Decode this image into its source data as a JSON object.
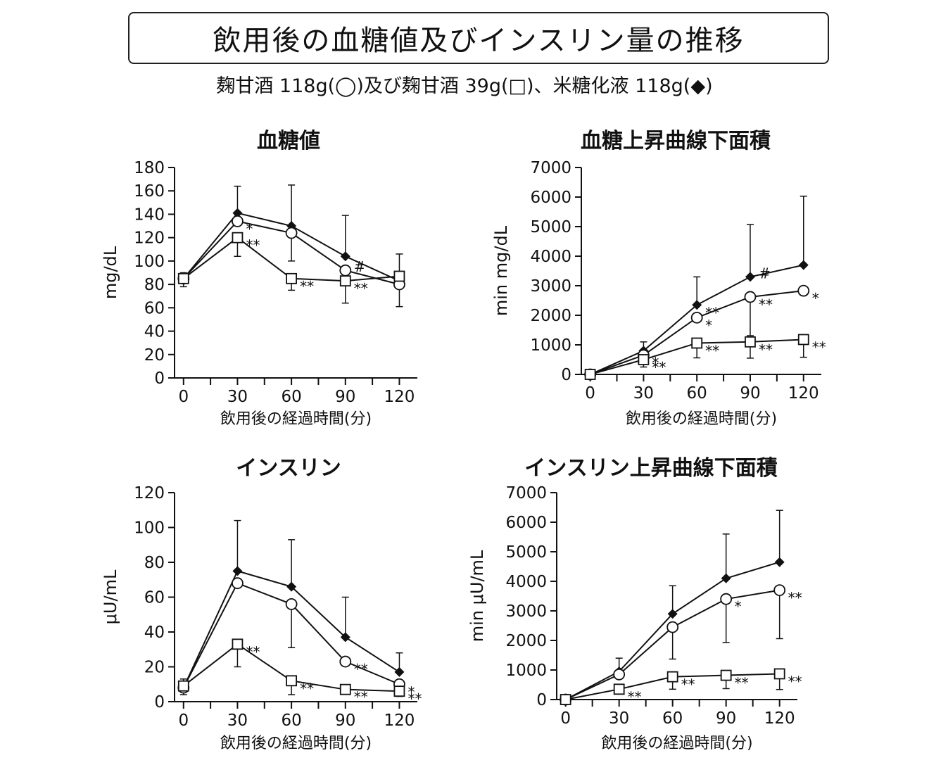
{
  "page": {
    "title": "飲用後の血糖値及びインスリン量の推移",
    "subtitle": "麹甘酒 118g(◯)及び麹甘酒 39g(□)、米糖化液 118g(◆)"
  },
  "chart_data": [
    {
      "id": "glucose",
      "type": "line",
      "title": "血糖値",
      "xlabel": "飲用後の経過時間(分)",
      "ylabel": "mg/dL",
      "xlim": [
        -5,
        130
      ],
      "xticks": [
        0,
        30,
        60,
        90,
        120
      ],
      "xminor": [
        15,
        45,
        75,
        105
      ],
      "ylim": [
        0,
        180
      ],
      "yticks": [
        0,
        20,
        40,
        60,
        80,
        100,
        120,
        140,
        160,
        180
      ],
      "series": [
        {
          "marker": "diamond",
          "x": [
            0,
            30,
            60,
            90,
            120
          ],
          "y": [
            85,
            141,
            130,
            104,
            83
          ],
          "err_up": [
            null,
            23,
            35,
            35,
            null
          ],
          "err_dn": [
            null,
            null,
            null,
            null,
            null
          ],
          "labels": [
            "",
            "",
            "",
            "",
            ""
          ]
        },
        {
          "marker": "circle",
          "x": [
            0,
            30,
            60,
            90,
            120
          ],
          "y": [
            85,
            134,
            124,
            92,
            80
          ],
          "err_up": [
            null,
            null,
            null,
            null,
            null
          ],
          "err_dn": [
            null,
            null,
            24,
            null,
            19
          ],
          "labels": [
            "",
            "*",
            "",
            "#",
            ""
          ]
        },
        {
          "marker": "square",
          "x": [
            0,
            30,
            60,
            90,
            120
          ],
          "y": [
            85,
            120,
            85,
            83,
            87
          ],
          "err_up": [
            5,
            null,
            null,
            null,
            19
          ],
          "err_dn": [
            7,
            16,
            10,
            19,
            null
          ],
          "labels": [
            "",
            "**",
            "**",
            "**",
            ""
          ]
        }
      ]
    },
    {
      "id": "glucose-auc",
      "type": "line",
      "title": "血糖上昇曲線下面積",
      "xlabel": "飲用後の経過時間(分)",
      "ylabel": "min mg/dL",
      "xlim": [
        -5,
        130
      ],
      "xticks": [
        0,
        30,
        60,
        90,
        120
      ],
      "xminor": [
        15,
        45,
        75,
        105
      ],
      "ylim": [
        0,
        7000
      ],
      "yticks": [
        0,
        1000,
        2000,
        3000,
        4000,
        5000,
        6000,
        7000
      ],
      "series": [
        {
          "marker": "diamond",
          "x": [
            0,
            30,
            60,
            90,
            120
          ],
          "y": [
            0,
            800,
            2350,
            3300,
            3700
          ],
          "err_up": [
            null,
            300,
            950,
            1770,
            2330
          ],
          "err_dn": [
            null,
            null,
            null,
            null,
            null
          ],
          "labels": [
            "",
            "",
            "**",
            "#",
            ""
          ]
        },
        {
          "marker": "circle",
          "x": [
            0,
            30,
            60,
            90,
            120
          ],
          "y": [
            0,
            650,
            1920,
            2620,
            2830
          ],
          "err_up": [
            null,
            null,
            null,
            null,
            null
          ],
          "err_dn": [
            null,
            null,
            null,
            1310,
            null
          ],
          "labels": [
            "",
            "*",
            "*",
            "**",
            "*"
          ]
        },
        {
          "marker": "square",
          "x": [
            0,
            30,
            60,
            90,
            120
          ],
          "y": [
            0,
            500,
            1060,
            1100,
            1180
          ],
          "err_up": [
            null,
            null,
            null,
            null,
            null
          ],
          "err_dn": [
            null,
            250,
            500,
            550,
            600
          ],
          "labels": [
            "",
            "**",
            "**",
            "**",
            "**"
          ]
        }
      ]
    },
    {
      "id": "insulin",
      "type": "line",
      "title": "インスリン",
      "xlabel": "飲用後の経過時間(分)",
      "ylabel": "μU/mL",
      "xlim": [
        -5,
        130
      ],
      "xticks": [
        0,
        30,
        60,
        90,
        120
      ],
      "xminor": [
        15,
        45,
        75,
        105
      ],
      "ylim": [
        0,
        120
      ],
      "yticks": [
        0,
        20,
        40,
        60,
        80,
        100,
        120
      ],
      "series": [
        {
          "marker": "diamond",
          "x": [
            0,
            30,
            60,
            90,
            120
          ],
          "y": [
            8,
            75,
            66,
            37,
            17
          ],
          "err_up": [
            null,
            29,
            27,
            23,
            11
          ],
          "err_dn": [
            null,
            null,
            null,
            null,
            null
          ],
          "labels": [
            "",
            "",
            "",
            "",
            ""
          ]
        },
        {
          "marker": "circle",
          "x": [
            0,
            30,
            60,
            90,
            120
          ],
          "y": [
            8,
            68,
            56,
            23,
            10
          ],
          "err_up": [
            null,
            null,
            null,
            null,
            null
          ],
          "err_dn": [
            null,
            null,
            25,
            null,
            null
          ],
          "labels": [
            "",
            "",
            "",
            "**",
            "*"
          ]
        },
        {
          "marker": "square",
          "x": [
            0,
            30,
            60,
            90,
            120
          ],
          "y": [
            9,
            33,
            12,
            7,
            6
          ],
          "err_up": [
            4,
            null,
            null,
            null,
            null
          ],
          "err_dn": [
            5,
            13,
            8,
            2,
            3
          ],
          "labels": [
            "",
            "**",
            "**",
            "**",
            "**"
          ]
        }
      ]
    },
    {
      "id": "insulin-auc",
      "type": "line",
      "title": "インスリン上昇曲線下面積",
      "xlabel": "飲用後の経過時間(分)",
      "ylabel": "min μU/mL",
      "xlim": [
        -5,
        130
      ],
      "xticks": [
        0,
        30,
        60,
        90,
        120
      ],
      "xminor": [
        15,
        45,
        75,
        105
      ],
      "ylim": [
        0,
        7000
      ],
      "yticks": [
        0,
        1000,
        2000,
        3000,
        4000,
        5000,
        6000,
        7000
      ],
      "series": [
        {
          "marker": "diamond",
          "x": [
            0,
            30,
            60,
            90,
            120
          ],
          "y": [
            0,
            950,
            2900,
            4100,
            4650
          ],
          "err_up": [
            null,
            450,
            950,
            1500,
            1750
          ],
          "err_dn": [
            null,
            null,
            null,
            null,
            null
          ],
          "labels": [
            "",
            "",
            "",
            "",
            ""
          ]
        },
        {
          "marker": "circle",
          "x": [
            0,
            30,
            60,
            90,
            120
          ],
          "y": [
            0,
            850,
            2450,
            3400,
            3700
          ],
          "err_up": [
            null,
            null,
            null,
            null,
            null
          ],
          "err_dn": [
            null,
            null,
            1080,
            1470,
            1640
          ],
          "labels": [
            "",
            "",
            "",
            "*",
            "**"
          ]
        },
        {
          "marker": "square",
          "x": [
            0,
            30,
            60,
            90,
            120
          ],
          "y": [
            0,
            350,
            770,
            820,
            870
          ],
          "err_up": [
            null,
            null,
            null,
            null,
            null
          ],
          "err_dn": [
            null,
            150,
            420,
            450,
            530
          ],
          "labels": [
            "",
            "**",
            "**",
            "**",
            "**"
          ]
        }
      ]
    }
  ]
}
